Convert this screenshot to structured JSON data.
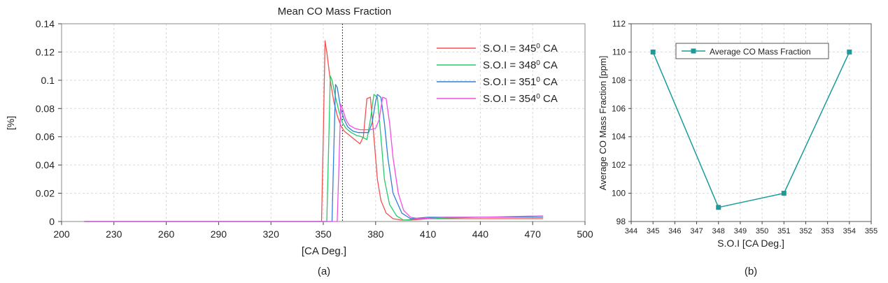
{
  "chart_data": [
    {
      "type": "line",
      "panel_label": "(a)",
      "title": "Mean CO Mass Fraction",
      "xlabel": "[CA Deg.]",
      "ylabel": "[%]",
      "xlim": [
        200,
        500
      ],
      "ylim": [
        0,
        0.14
      ],
      "xticks": [
        "200",
        "230",
        "260",
        "290",
        "320",
        "350",
        "380",
        "410",
        "440",
        "470",
        "500"
      ],
      "yticks": [
        "0",
        "0.02",
        "0.04",
        "0.06",
        "0.08",
        "0.1",
        "0.12",
        "0.14"
      ],
      "reference_line_x": 361,
      "legend_position": "top-right",
      "series": [
        {
          "name": "S.O.I = 345⁰ CA",
          "color": "#f05050",
          "x": [
            213,
            349,
            350,
            351,
            352,
            354,
            356,
            358,
            360,
            362,
            365,
            368,
            371,
            373,
            375,
            377,
            379,
            381,
            383,
            386,
            390,
            395,
            400,
            410,
            440,
            476
          ],
          "y": [
            0,
            0,
            0.06,
            0.128,
            0.12,
            0.1,
            0.085,
            0.075,
            0.068,
            0.064,
            0.061,
            0.058,
            0.055,
            0.06,
            0.087,
            0.088,
            0.06,
            0.03,
            0.015,
            0.006,
            0.002,
            0.001,
            0.001,
            0.002,
            0.002,
            0.002
          ]
        },
        {
          "name": "S.O.I = 348⁰ CA",
          "color": "#22cc66",
          "x": [
            213,
            352,
            353,
            354,
            355,
            357,
            359,
            361,
            363,
            366,
            369,
            372,
            375,
            377,
            379,
            381,
            383,
            385,
            388,
            392,
            396,
            405,
            440,
            476
          ],
          "y": [
            0,
            0,
            0.05,
            0.103,
            0.1,
            0.088,
            0.078,
            0.07,
            0.066,
            0.063,
            0.061,
            0.06,
            0.058,
            0.072,
            0.09,
            0.088,
            0.06,
            0.03,
            0.012,
            0.004,
            0.001,
            0.002,
            0.003,
            0.003
          ]
        },
        {
          "name": "S.O.I = 351⁰ CA",
          "color": "#2f7fd8",
          "x": [
            213,
            355,
            356,
            357,
            358,
            360,
            362,
            364,
            367,
            370,
            373,
            376,
            378,
            380,
            381,
            383,
            385,
            387,
            390,
            395,
            400,
            410,
            440,
            476
          ],
          "y": [
            0,
            0,
            0.05,
            0.097,
            0.095,
            0.08,
            0.072,
            0.067,
            0.064,
            0.063,
            0.063,
            0.063,
            0.07,
            0.085,
            0.09,
            0.088,
            0.07,
            0.045,
            0.02,
            0.006,
            0.002,
            0.003,
            0.003,
            0.003
          ]
        },
        {
          "name": "S.O.I = 354⁰ CA",
          "color": "#f050e0",
          "x": [
            213,
            358,
            359,
            360,
            361,
            363,
            365,
            368,
            371,
            374,
            377,
            380,
            382,
            384,
            386,
            388,
            390,
            393,
            396,
            400,
            405,
            420,
            440,
            476
          ],
          "y": [
            0,
            0,
            0.04,
            0.083,
            0.08,
            0.072,
            0.068,
            0.066,
            0.065,
            0.065,
            0.065,
            0.066,
            0.072,
            0.088,
            0.087,
            0.07,
            0.045,
            0.02,
            0.008,
            0.003,
            0.002,
            0.003,
            0.003,
            0.004
          ]
        }
      ]
    },
    {
      "type": "line",
      "panel_label": "(b)",
      "title": "",
      "xlabel": "S.O.I [CA Deg.]",
      "ylabel": "Average CO Mass Fraction [ppm]",
      "xlim": [
        344,
        355
      ],
      "ylim": [
        98,
        112
      ],
      "xticks": [
        "344",
        "345",
        "346",
        "347",
        "348",
        "349",
        "350",
        "351",
        "352",
        "353",
        "354",
        "355"
      ],
      "yticks": [
        "98",
        "100",
        "102",
        "104",
        "106",
        "108",
        "110",
        "112"
      ],
      "legend_position": "top-center",
      "series": [
        {
          "name": "Average CO Mass Fraction",
          "color": "#1a9a9a",
          "marker": "square",
          "x": [
            345,
            348,
            351,
            354
          ],
          "y": [
            110,
            99,
            100,
            110
          ]
        }
      ]
    }
  ]
}
